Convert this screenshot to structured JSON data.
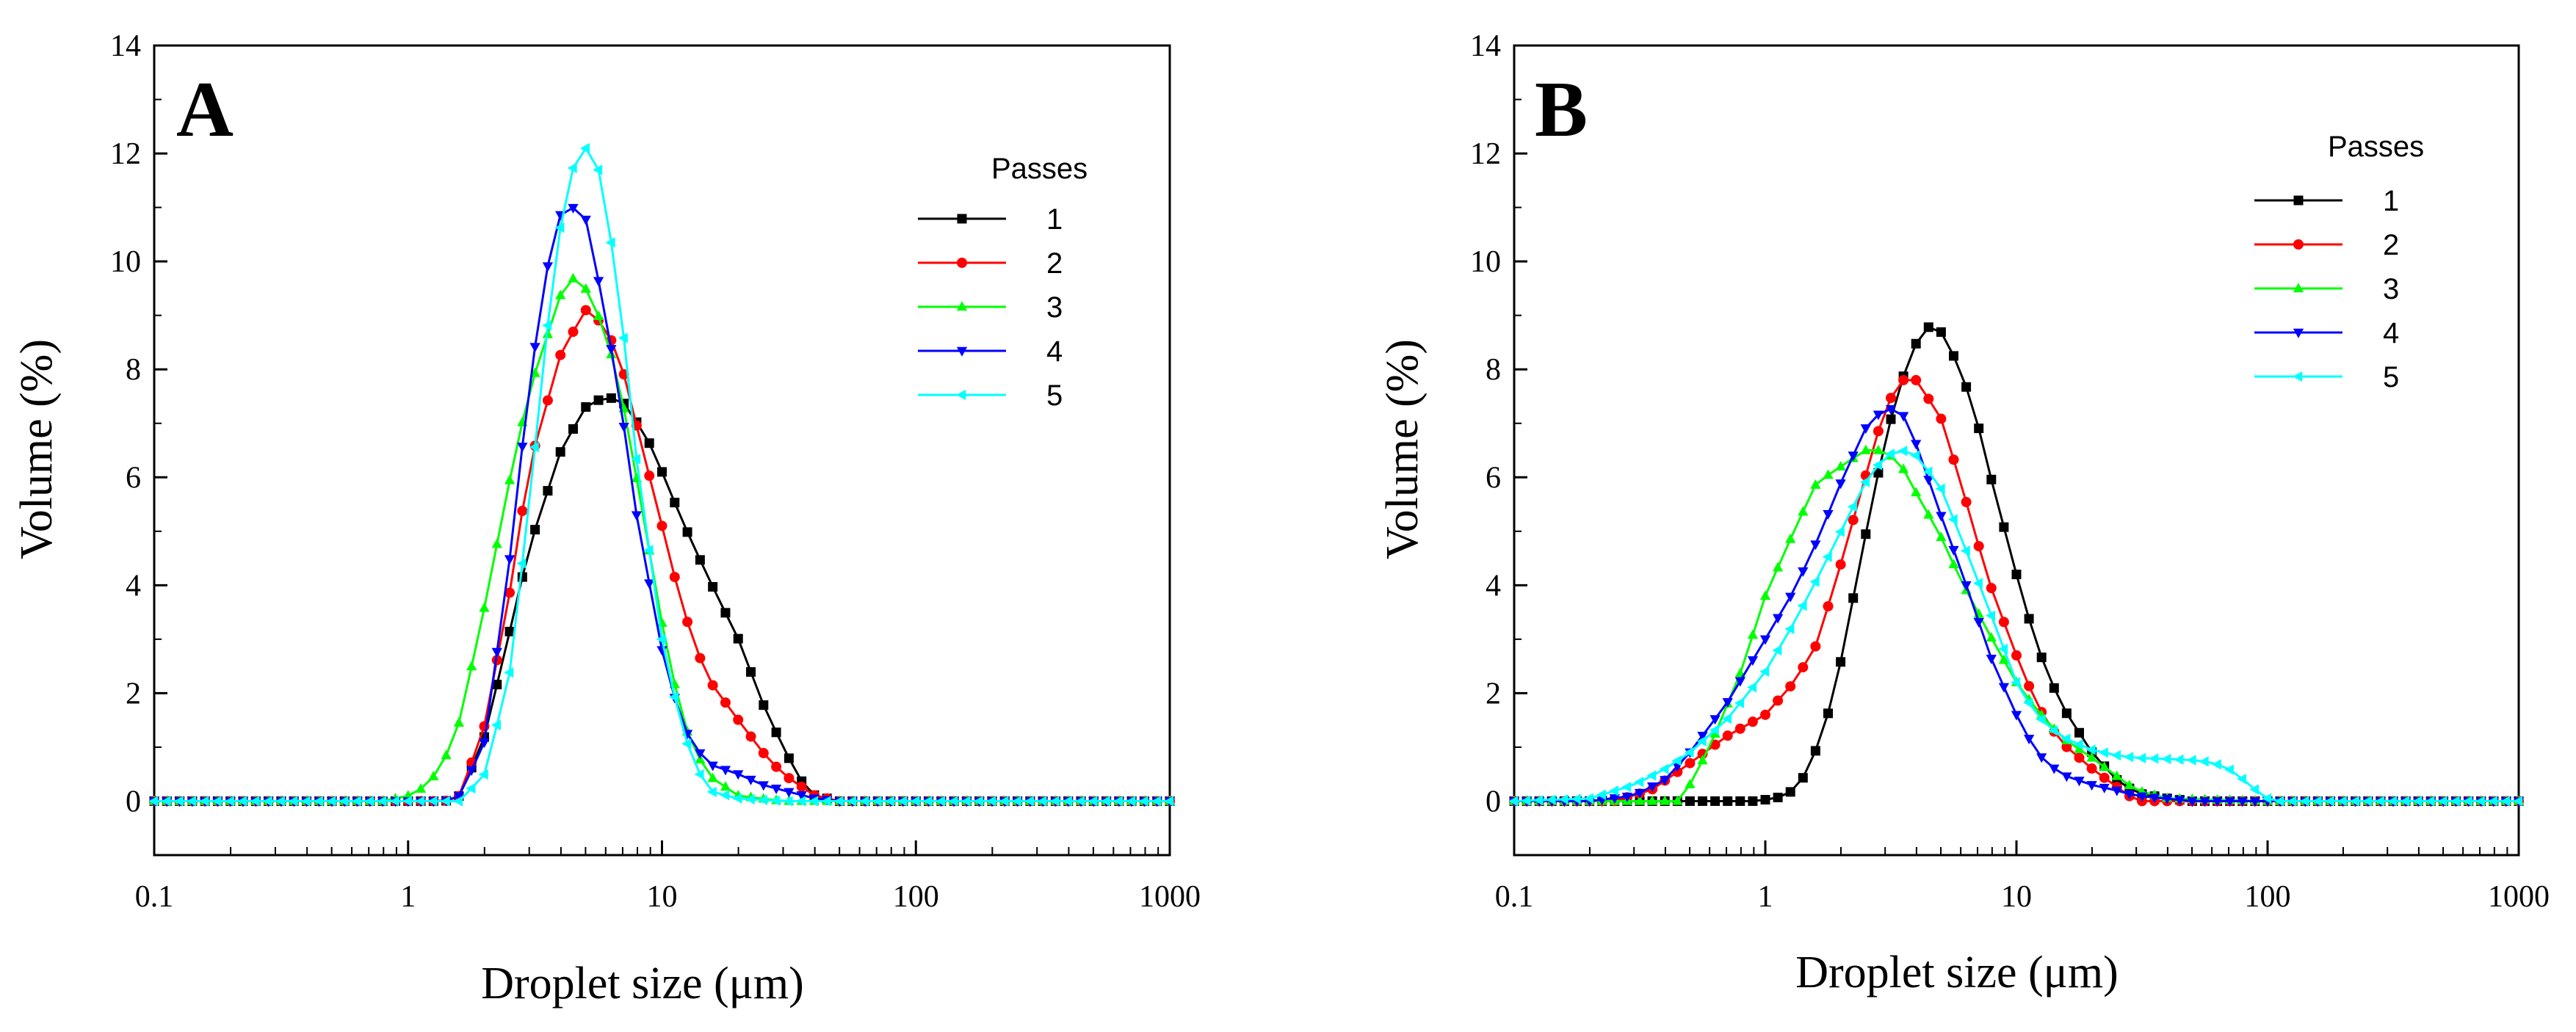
{
  "chart_data": [
    {
      "type": "line",
      "panel_label": "A",
      "xlabel": "Droplet size (μm)",
      "ylabel": "Volume (%)",
      "xscale": "log",
      "xlim": [
        0.1,
        1000
      ],
      "ylim": [
        -1,
        14
      ],
      "xticks": [
        0.1,
        1,
        10,
        100,
        1000
      ],
      "xtick_labels": [
        "0.1",
        "1",
        "10",
        "100",
        "1000"
      ],
      "yticks": [
        0,
        2,
        4,
        6,
        8,
        10,
        12,
        14
      ],
      "ytick_labels": [
        "0",
        "2",
        "4",
        "6",
        "8",
        "10",
        "12",
        "14"
      ],
      "grid": false,
      "legend": {
        "title": "Passes",
        "placement": "top-right"
      },
      "series": [
        {
          "name": "1",
          "color": "#000000",
          "marker": "square",
          "x": [
            0.1,
            1.4,
            1.6,
            2,
            2.5,
            3,
            4,
            5,
            6,
            7,
            8,
            9,
            10,
            12,
            15,
            20,
            25,
            30,
            35,
            40,
            50,
            100,
            1000
          ],
          "y": [
            0,
            0,
            0.1,
            1.2,
            3.1,
            4.7,
            6.5,
            7.3,
            7.5,
            7.4,
            7.0,
            6.6,
            6.1,
            5.2,
            4.2,
            3.0,
            1.8,
            1.0,
            0.4,
            0.1,
            0,
            0,
            0
          ]
        },
        {
          "name": "2",
          "color": "#ff0000",
          "marker": "circle",
          "x": [
            0.1,
            1.4,
            1.6,
            2,
            2.5,
            3,
            4,
            5,
            6,
            7,
            8,
            10,
            12,
            15,
            20,
            25,
            30,
            40,
            50,
            100,
            1000
          ],
          "y": [
            0,
            0,
            0.1,
            1.4,
            3.8,
            6.2,
            8.3,
            9.1,
            8.8,
            8.0,
            6.9,
            5.1,
            3.6,
            2.3,
            1.5,
            0.9,
            0.5,
            0.1,
            0,
            0,
            0
          ]
        },
        {
          "name": "3",
          "color": "#00ff00",
          "marker": "triangle-up",
          "x": [
            0.1,
            0.8,
            1,
            1.2,
            1.4,
            1.6,
            2,
            2.5,
            3,
            4,
            4.5,
            5,
            6,
            7,
            8,
            10,
            12,
            15,
            20,
            30,
            50,
            100,
            1000
          ],
          "y": [
            0,
            0,
            0.1,
            0.3,
            0.8,
            1.5,
            3.6,
            5.9,
            7.6,
            9.4,
            9.7,
            9.5,
            8.7,
            7.4,
            5.9,
            3.3,
            1.5,
            0.5,
            0.1,
            0,
            0,
            0,
            0
          ]
        },
        {
          "name": "4",
          "color": "#0000ff",
          "marker": "triangle-down",
          "x": [
            0.1,
            1.4,
            1.6,
            2,
            2.5,
            3,
            3.5,
            4,
            4.5,
            5,
            6,
            7,
            8,
            10,
            12,
            15,
            20,
            25,
            30,
            40,
            50,
            100,
            1000
          ],
          "y": [
            0,
            0,
            0.1,
            1.1,
            4.4,
            7.7,
            9.8,
            10.9,
            11.0,
            10.8,
            9.0,
            7.1,
            5.2,
            2.8,
            1.4,
            0.7,
            0.5,
            0.3,
            0.2,
            0.05,
            0,
            0,
            0
          ]
        },
        {
          "name": "5",
          "color": "#00ffff",
          "marker": "triangle-left",
          "x": [
            0.1,
            1.6,
            2,
            2.5,
            3,
            3.5,
            4,
            4.5,
            5,
            5.5,
            6,
            7,
            8,
            10,
            12,
            15,
            20,
            30,
            50,
            100,
            1000
          ],
          "y": [
            0,
            0,
            0.5,
            2.3,
            5.5,
            8.6,
            10.7,
            11.8,
            12.1,
            11.9,
            11.1,
            8.8,
            6.2,
            3.0,
            1.3,
            0.2,
            0.05,
            0,
            0,
            0,
            0
          ]
        }
      ]
    },
    {
      "type": "line",
      "panel_label": "B",
      "xlabel": "Droplet size  (μm)",
      "ylabel": "Volume (%)",
      "xscale": "log",
      "xlim": [
        0.1,
        1000
      ],
      "ylim": [
        -1,
        14
      ],
      "xticks": [
        0.1,
        1,
        10,
        100,
        1000
      ],
      "xtick_labels": [
        "0.1",
        "1",
        "10",
        "100",
        "1000"
      ],
      "yticks": [
        0,
        2,
        4,
        6,
        8,
        10,
        12,
        14
      ],
      "ytick_labels": [
        "0",
        "2",
        "4",
        "6",
        "8",
        "10",
        "12",
        "14"
      ],
      "grid": false,
      "legend": {
        "title": "Passes",
        "placement": "top-right"
      },
      "series": [
        {
          "name": "1",
          "color": "#000000",
          "marker": "square",
          "x": [
            0.1,
            0.9,
            1.1,
            1.3,
            1.5,
            1.8,
            2,
            2.5,
            3,
            3.5,
            4,
            4.5,
            5,
            6,
            7,
            8,
            10,
            12,
            15,
            20,
            25,
            30,
            40,
            50,
            100,
            1000
          ],
          "y": [
            0,
            0,
            0.05,
            0.2,
            0.6,
            1.7,
            2.6,
            4.9,
            6.7,
            7.8,
            8.5,
            8.8,
            8.7,
            8.0,
            7.0,
            5.9,
            4.2,
            2.9,
            1.8,
            0.9,
            0.4,
            0.15,
            0.05,
            0,
            0,
            0
          ]
        },
        {
          "name": "2",
          "color": "#ff0000",
          "marker": "circle",
          "x": [
            0.1,
            0.25,
            0.35,
            0.5,
            0.7,
            1,
            1.3,
            1.6,
            2,
            2.5,
            3,
            3.5,
            4,
            5,
            6,
            7,
            8,
            10,
            12,
            15,
            20,
            30,
            100,
            1000
          ],
          "y": [
            0,
            0,
            0.2,
            0.7,
            1.2,
            1.6,
            2.2,
            2.9,
            4.4,
            6.0,
            7.3,
            7.8,
            7.8,
            7.1,
            5.9,
            4.8,
            3.9,
            2.7,
            1.8,
            1.1,
            0.6,
            0,
            0,
            0
          ]
        },
        {
          "name": "3",
          "color": "#00ff00",
          "marker": "triangle-up",
          "x": [
            0.1,
            0.4,
            0.45,
            0.5,
            0.6,
            0.8,
            1,
            1.3,
            1.6,
            2,
            2.5,
            3,
            3.5,
            4,
            5,
            6,
            8,
            10,
            12,
            15,
            20,
            30,
            40,
            100,
            1000
          ],
          "y": [
            0,
            0,
            0,
            0.3,
            1.0,
            2.4,
            3.8,
            5.0,
            5.9,
            6.2,
            6.5,
            6.5,
            6.2,
            5.7,
            4.9,
            4.1,
            3.0,
            2.2,
            1.7,
            1.2,
            0.8,
            0.2,
            0.05,
            0,
            0
          ]
        },
        {
          "name": "4",
          "color": "#0000ff",
          "marker": "triangle-down",
          "x": [
            0.1,
            0.2,
            0.3,
            0.4,
            0.5,
            0.7,
            1,
            1.3,
            1.6,
            2,
            2.5,
            3,
            3.5,
            4,
            5,
            6,
            8,
            10,
            12,
            15,
            20,
            25,
            30,
            50,
            100,
            1000
          ],
          "y": [
            0,
            0,
            0.1,
            0.4,
            0.9,
            1.8,
            3.0,
            3.9,
            4.8,
            5.9,
            6.9,
            7.3,
            7.2,
            6.6,
            5.3,
            4.3,
            2.6,
            1.6,
            0.9,
            0.5,
            0.3,
            0.2,
            0.1,
            0,
            0,
            0
          ]
        },
        {
          "name": "5",
          "color": "#00ffff",
          "marker": "triangle-left",
          "x": [
            0.1,
            0.2,
            0.3,
            0.4,
            0.5,
            0.7,
            1,
            1.3,
            1.6,
            2,
            2.5,
            3,
            3.5,
            4,
            5,
            6,
            8,
            10,
            12,
            15,
            20,
            25,
            30,
            40,
            50,
            60,
            70,
            80,
            90,
            100,
            110,
            1000
          ],
          "y": [
            0,
            0.05,
            0.3,
            0.6,
            0.9,
            1.5,
            2.4,
            3.3,
            4.1,
            5.0,
            5.9,
            6.4,
            6.5,
            6.4,
            5.8,
            4.9,
            3.4,
            2.2,
            1.6,
            1.2,
            0.95,
            0.85,
            0.8,
            0.78,
            0.76,
            0.72,
            0.6,
            0.4,
            0.2,
            0.05,
            0,
            0
          ]
        }
      ]
    }
  ]
}
